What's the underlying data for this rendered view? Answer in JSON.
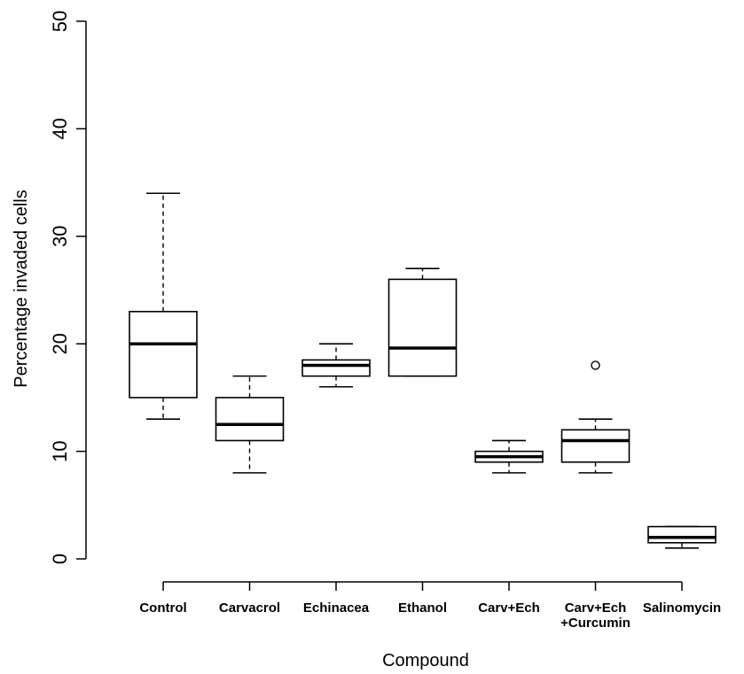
{
  "chart_data": {
    "type": "box",
    "title": "",
    "xlabel": "Compound",
    "ylabel": "Percentage invaded cells",
    "ylim": [
      0,
      50
    ],
    "yticks": [
      0,
      10,
      20,
      30,
      40,
      50
    ],
    "grid": false,
    "groups": [
      {
        "label": [
          "Control"
        ],
        "min": 13,
        "q1": 15,
        "median": 20,
        "q3": 23,
        "max": 34,
        "outliers": []
      },
      {
        "label": [
          "Carvacrol"
        ],
        "min": 8,
        "q1": 11,
        "median": 12.5,
        "q3": 15,
        "max": 17,
        "outliers": []
      },
      {
        "label": [
          "Echinacea"
        ],
        "min": 16,
        "q1": 17,
        "median": 18,
        "q3": 18.5,
        "max": 20,
        "outliers": []
      },
      {
        "label": [
          "Ethanol"
        ],
        "min": 17,
        "q1": 17,
        "median": 19.6,
        "q3": 26,
        "max": 27,
        "outliers": []
      },
      {
        "label": [
          "Carv+Ech"
        ],
        "min": 8,
        "q1": 9,
        "median": 9.5,
        "q3": 10,
        "max": 11,
        "outliers": []
      },
      {
        "label": [
          "Carv+Ech",
          "+Curcumin"
        ],
        "min": 8,
        "q1": 9,
        "median": 11,
        "q3": 12,
        "max": 13,
        "outliers": [
          18
        ]
      },
      {
        "label": [
          "Salinomycin"
        ],
        "min": 1,
        "q1": 1.5,
        "median": 2,
        "q3": 3,
        "max": 3,
        "outliers": []
      }
    ]
  }
}
